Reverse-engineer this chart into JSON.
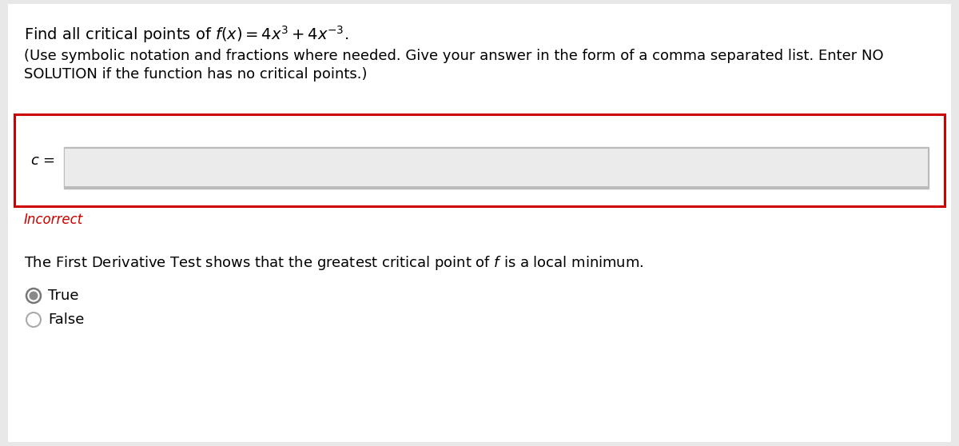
{
  "bg_color": "#e8e8e8",
  "panel_color": "#ffffff",
  "title_text_plain": "Find all critical points of ",
  "title_math": "$f(x) = 4x^3 + 4x^{-3}.$",
  "instruction_line1": "(Use symbolic notation and fractions where needed. Give your answer in the form of a comma separated list. Enter NO",
  "instruction_line2": "SOLUTION if the function has no critical points.)",
  "label_c": "$c$ =",
  "incorrect_text": "Incorrect",
  "incorrect_color": "#cc0000",
  "derivative_text_plain": "The First Derivative Test shows that the greatest critical point of ",
  "derivative_text_italic": "$f$",
  "derivative_text_end": " is a local minimum.",
  "true_label": "True",
  "false_label": "False",
  "input_box_bg": "#ebebeb",
  "input_box_border": "#bbbbbb",
  "red_box_color": "#cc0000",
  "font_size_title": 14,
  "font_size_body": 13,
  "font_size_incorrect": 12
}
